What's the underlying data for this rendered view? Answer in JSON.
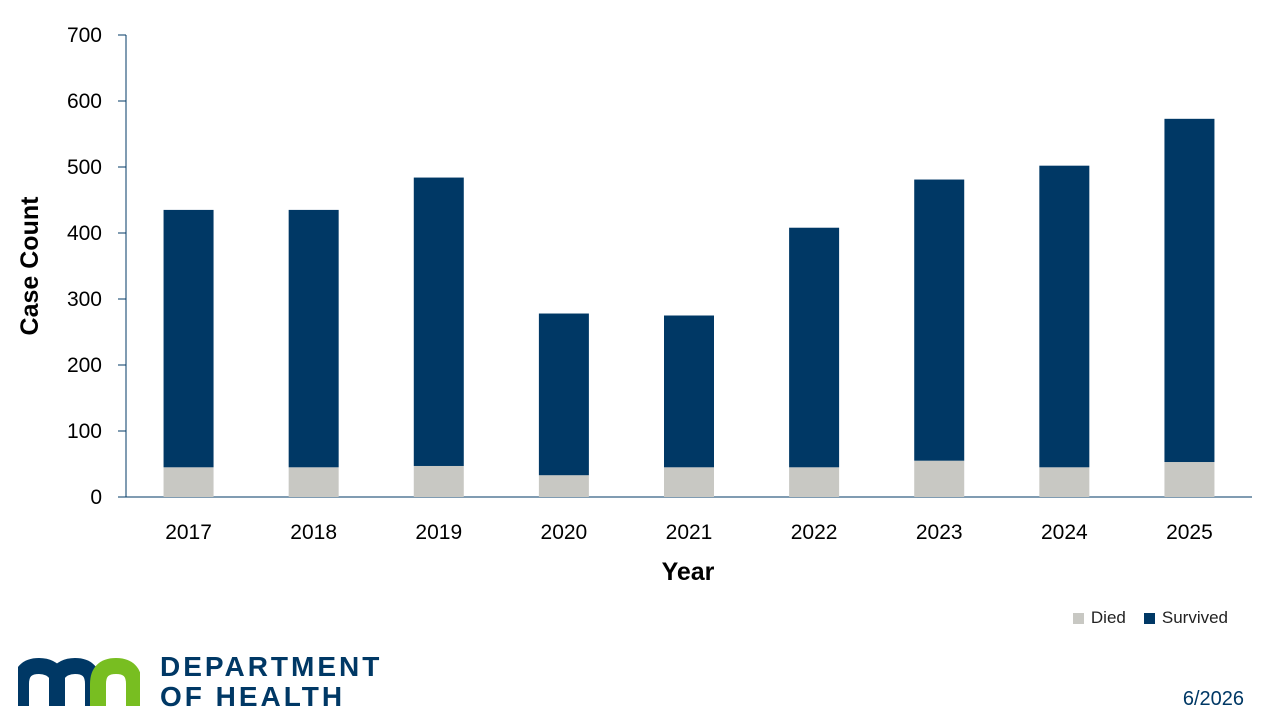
{
  "chart_data": {
    "type": "bar",
    "stacked": true,
    "categories": [
      "2017",
      "2018",
      "2019",
      "2020",
      "2021",
      "2022",
      "2023",
      "2024",
      "2025"
    ],
    "series": [
      {
        "name": "Died",
        "values": [
          45,
          45,
          47,
          33,
          45,
          45,
          55,
          45,
          53
        ],
        "color": "#c8c8c3"
      },
      {
        "name": "Survived",
        "values": [
          390,
          390,
          437,
          245,
          230,
          363,
          426,
          457,
          520
        ],
        "color": "#003865"
      }
    ],
    "totals": [
      435,
      435,
      484,
      278,
      275,
      408,
      481,
      502,
      573
    ],
    "xlabel": "Year",
    "ylabel": "Case Count",
    "ylim": [
      0,
      700
    ],
    "yticks": [
      0,
      100,
      200,
      300,
      400,
      500,
      600,
      700
    ],
    "grid": false,
    "legend_position": "bottom-right"
  },
  "legend": {
    "died_label": "Died",
    "survived_label": "Survived"
  },
  "logo": {
    "line1": "DEPARTMENT",
    "line2": "OF HEALTH"
  },
  "footer": {
    "date": "6/2026"
  },
  "colors": {
    "died": "#c8c8c3",
    "survived": "#003865",
    "brand_blue": "#003865",
    "brand_green": "#78be21"
  }
}
